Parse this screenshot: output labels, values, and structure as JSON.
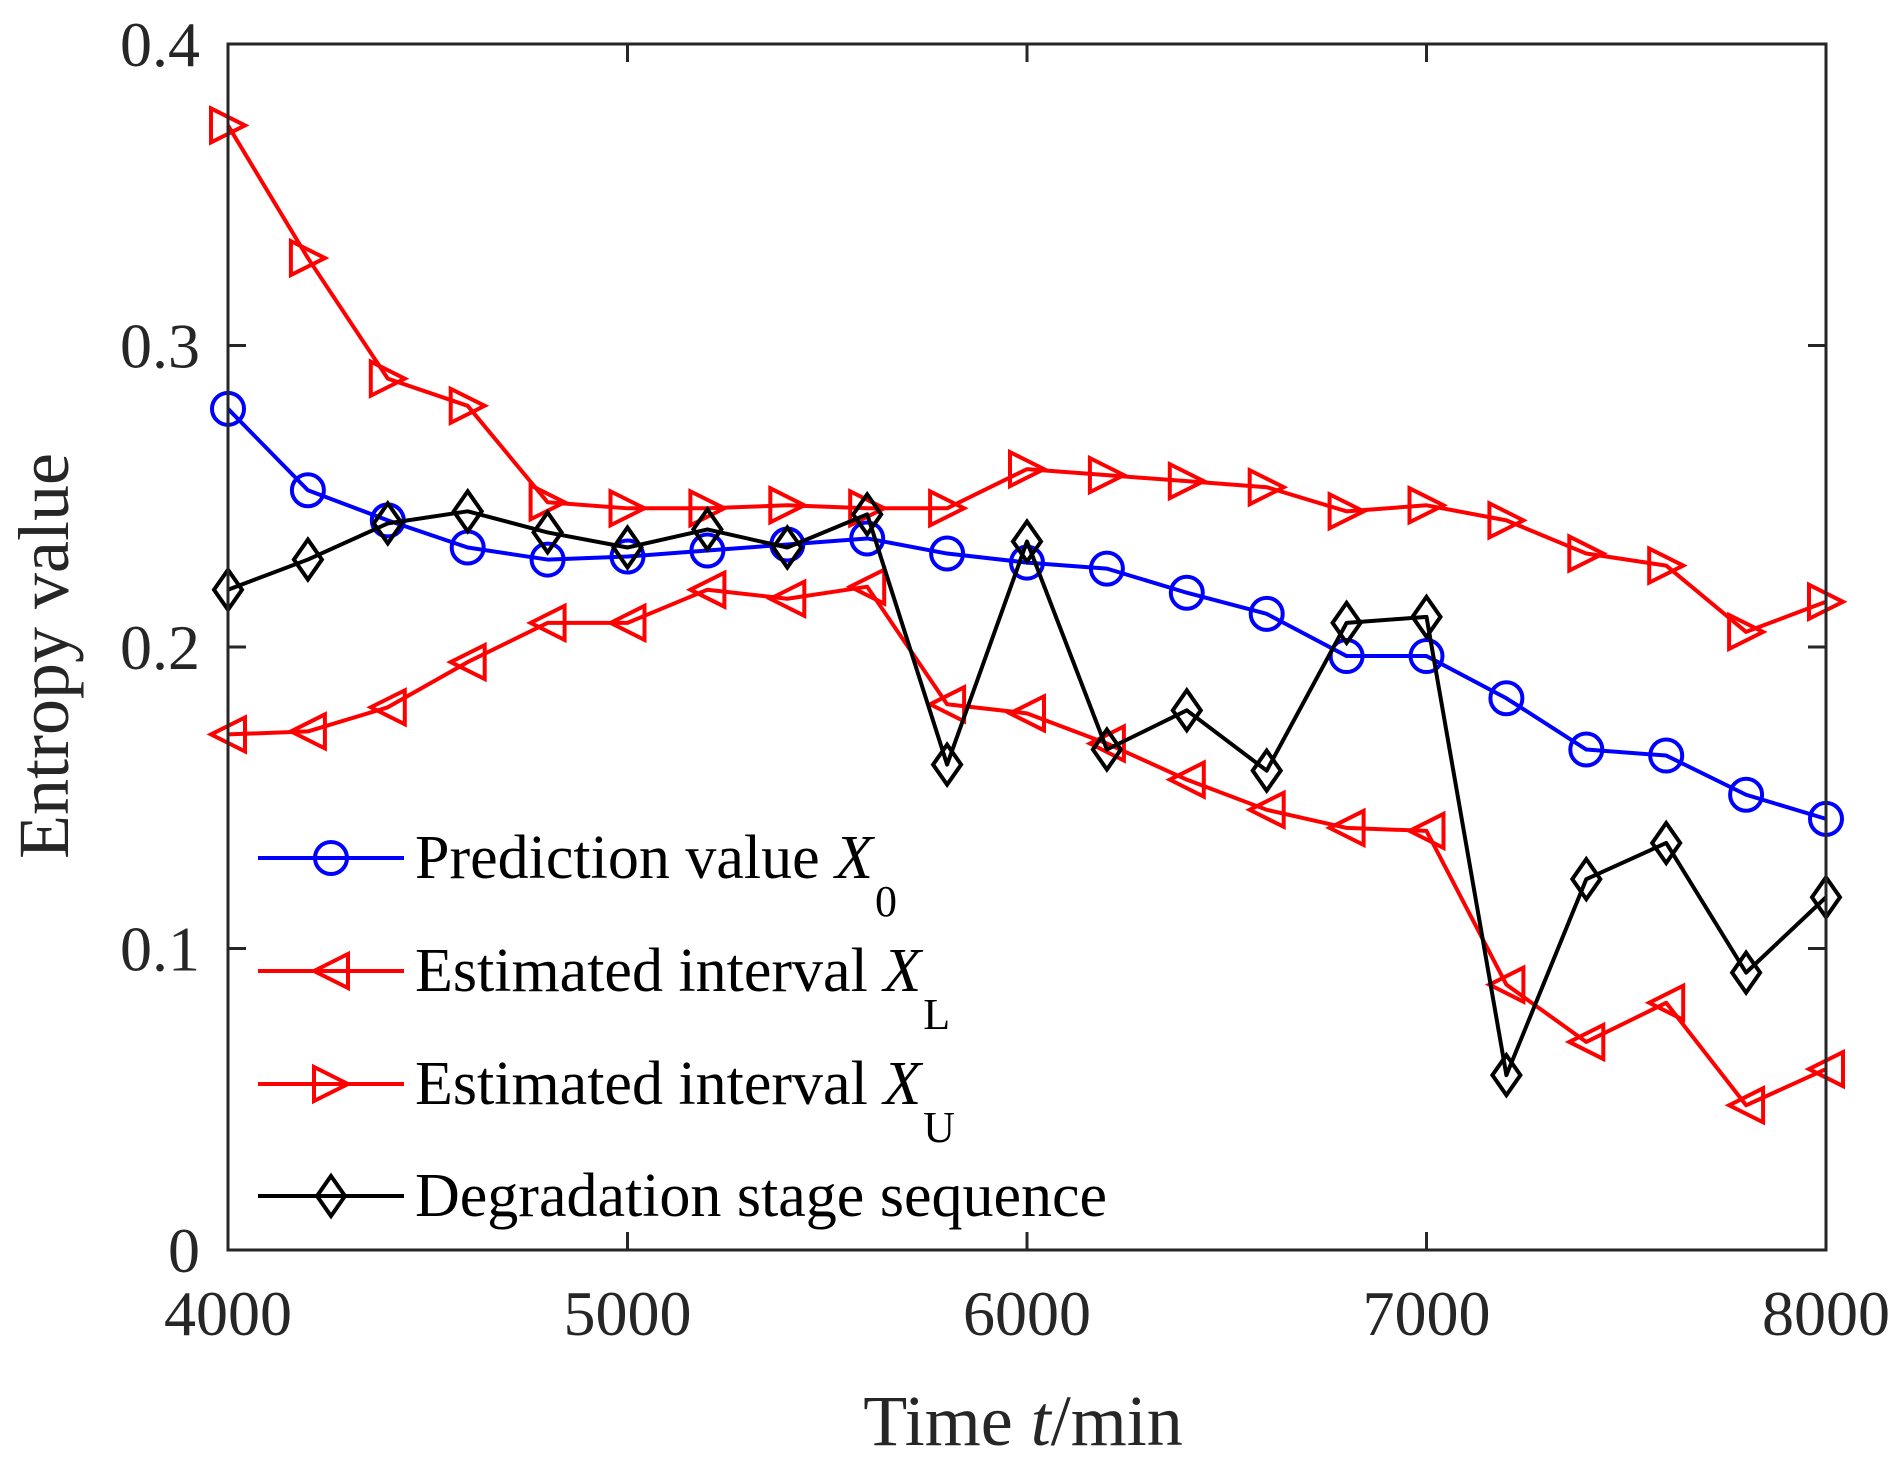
{
  "chart_data": {
    "type": "line",
    "xlabel": {
      "pre": "Time ",
      "var": "t",
      "post": "/min"
    },
    "ylabel": "Entropy value",
    "xlim": [
      4000,
      8000
    ],
    "ylim": [
      0,
      0.4
    ],
    "xticks": [
      4000,
      5000,
      6000,
      7000,
      8000
    ],
    "xtick_labels": [
      "4000",
      "5000",
      "6000",
      "7000",
      "8000"
    ],
    "yticks": [
      0,
      0.1,
      0.2,
      0.3,
      0.4
    ],
    "ytick_labels": [
      "0",
      "0.1",
      "0.2",
      "0.3",
      "0.4"
    ],
    "grid": false,
    "legend_position": "bottom-left",
    "x": [
      4000,
      4200,
      4400,
      4600,
      4800,
      5000,
      5200,
      5400,
      5600,
      5800,
      6000,
      6200,
      6400,
      6600,
      6800,
      7000,
      7200,
      7400,
      7600,
      7800,
      8000
    ],
    "series": [
      {
        "name": "Prediction value X0",
        "label_main": "Prediction value ",
        "label_var": "X",
        "label_sub": "0",
        "color": "#0000ff",
        "marker": "circle",
        "values": [
          0.279,
          0.252,
          0.242,
          0.233,
          0.229,
          0.23,
          0.232,
          0.234,
          0.236,
          0.231,
          0.228,
          0.226,
          0.218,
          0.211,
          0.197,
          0.197,
          0.183,
          0.166,
          0.164,
          0.151,
          0.143
        ]
      },
      {
        "name": "Estimated interval XL",
        "label_main": "Estimated interval ",
        "label_var": "X",
        "label_sub": "L",
        "color": "#ff0000",
        "marker": "triangle-left",
        "values": [
          0.171,
          0.172,
          0.18,
          0.195,
          0.208,
          0.208,
          0.219,
          0.216,
          0.22,
          0.181,
          0.178,
          0.168,
          0.156,
          0.146,
          0.14,
          0.139,
          0.088,
          0.069,
          0.082,
          0.048,
          0.06
        ]
      },
      {
        "name": "Estimated interval XU",
        "label_main": "Estimated interval ",
        "label_var": "X",
        "label_sub": "U",
        "color": "#ff0000",
        "marker": "triangle-right",
        "values": [
          0.373,
          0.329,
          0.289,
          0.28,
          0.248,
          0.246,
          0.246,
          0.247,
          0.246,
          0.246,
          0.259,
          0.257,
          0.255,
          0.253,
          0.245,
          0.247,
          0.242,
          0.231,
          0.227,
          0.205,
          0.215
        ]
      },
      {
        "name": "Degradation stage sequence",
        "label_main": "Degradation stage sequence",
        "label_var": "",
        "label_sub": "",
        "color": "#000000",
        "marker": "diamond",
        "values": [
          0.219,
          0.229,
          0.241,
          0.245,
          0.238,
          0.233,
          0.239,
          0.233,
          0.244,
          0.161,
          0.235,
          0.166,
          0.179,
          0.159,
          0.208,
          0.21,
          0.058,
          0.123,
          0.135,
          0.092,
          0.117
        ]
      }
    ]
  }
}
